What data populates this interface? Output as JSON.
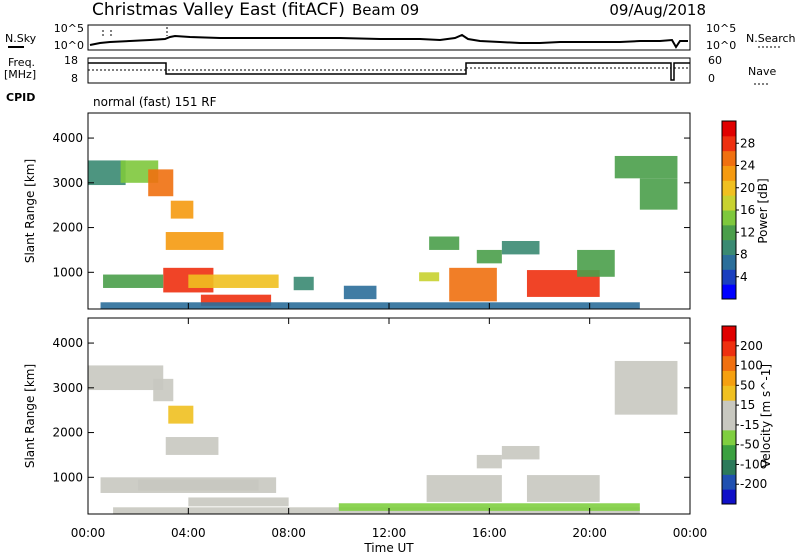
{
  "header": {
    "title": "Christmas Valley East (fitACF)",
    "beam": "Beam 09",
    "date": "09/Aug/2018"
  },
  "top_panels": {
    "nsky_label": "N.Sky",
    "nsearch_label": "N.Search",
    "noise_ticks_left": [
      "10^5",
      "10^0"
    ],
    "noise_ticks_right": [
      "10^5",
      "10^0"
    ],
    "freq_label": "Freq.",
    "freq_unit": "[MHz]",
    "freq_ticks": [
      "18",
      "8"
    ],
    "nave_label": "Nave",
    "nave_ticks": [
      "60",
      "0"
    ],
    "cpid_label": "CPID",
    "cpid_value": "normal (fast) 151 RF"
  },
  "chart_data": [
    {
      "type": "heatmap",
      "title": "",
      "xlabel": "Time UT",
      "ylabel": "Slant Range [km]",
      "x_ticks": [
        "00:00",
        "04:00",
        "08:00",
        "12:00",
        "16:00",
        "20:00",
        "00:00"
      ],
      "xlim_hours": [
        0,
        24
      ],
      "y_ticks": [
        1000,
        2000,
        3000,
        4000
      ],
      "ylim": [
        180,
        4560
      ],
      "colorbar": {
        "label": "Power [dB]",
        "ticks": [
          "4",
          "8",
          "12",
          "16",
          "20",
          "24",
          "28"
        ],
        "range": [
          0,
          30
        ],
        "colors": [
          "#0000ff",
          "#1a3fbf",
          "#2b6e9a",
          "#3a8a72",
          "#4a9e4a",
          "#7ec83c",
          "#c8d230",
          "#f0c020",
          "#f59a10",
          "#f07010",
          "#ee3010",
          "#e00000"
        ]
      },
      "patches": [
        {
          "t0": 0.0,
          "t1": 1.5,
          "r0": 2950,
          "r1": 3500,
          "v": 8
        },
        {
          "t0": 1.3,
          "t1": 2.8,
          "r0": 3000,
          "r1": 3500,
          "v": 14
        },
        {
          "t0": 2.4,
          "t1": 3.4,
          "r0": 2700,
          "r1": 3300,
          "v": 24
        },
        {
          "t0": 3.3,
          "t1": 4.2,
          "r0": 2200,
          "r1": 2600,
          "v": 20
        },
        {
          "t0": 3.1,
          "t1": 5.4,
          "r0": 1500,
          "r1": 1900,
          "v": 20
        },
        {
          "t0": 3.0,
          "t1": 5.0,
          "r0": 550,
          "r1": 1100,
          "v": 26
        },
        {
          "t0": 4.0,
          "t1": 7.6,
          "r0": 650,
          "r1": 950,
          "v": 18
        },
        {
          "t0": 0.6,
          "t1": 3.0,
          "r0": 650,
          "r1": 950,
          "v": 12
        },
        {
          "t0": 4.5,
          "t1": 7.3,
          "r0": 250,
          "r1": 500,
          "v": 26
        },
        {
          "t0": 0.5,
          "t1": 22.0,
          "r0": 180,
          "r1": 330,
          "v": 6
        },
        {
          "t0": 8.2,
          "t1": 9.0,
          "r0": 600,
          "r1": 900,
          "v": 8
        },
        {
          "t0": 10.2,
          "t1": 11.5,
          "r0": 400,
          "r1": 700,
          "v": 6
        },
        {
          "t0": 13.6,
          "t1": 14.8,
          "r0": 1500,
          "r1": 1800,
          "v": 10
        },
        {
          "t0": 13.2,
          "t1": 14.0,
          "r0": 800,
          "r1": 1000,
          "v": 16
        },
        {
          "t0": 14.4,
          "t1": 16.3,
          "r0": 350,
          "r1": 1100,
          "v": 24
        },
        {
          "t0": 15.5,
          "t1": 16.5,
          "r0": 1200,
          "r1": 1500,
          "v": 10
        },
        {
          "t0": 16.5,
          "t1": 18.0,
          "r0": 1400,
          "r1": 1700,
          "v": 8
        },
        {
          "t0": 17.5,
          "t1": 20.4,
          "r0": 450,
          "r1": 1050,
          "v": 26
        },
        {
          "t0": 19.5,
          "t1": 21.0,
          "r0": 900,
          "r1": 1500,
          "v": 10
        },
        {
          "t0": 21.0,
          "t1": 23.5,
          "r0": 3100,
          "r1": 3600,
          "v": 10
        },
        {
          "t0": 22.0,
          "t1": 23.5,
          "r0": 2400,
          "r1": 3100,
          "v": 12
        }
      ]
    },
    {
      "type": "heatmap",
      "title": "",
      "xlabel": "Time UT",
      "ylabel": "Slant Range [km]",
      "x_ticks": [
        "00:00",
        "04:00",
        "08:00",
        "12:00",
        "16:00",
        "20:00",
        "00:00"
      ],
      "xlim_hours": [
        0,
        24
      ],
      "y_ticks": [
        1000,
        2000,
        3000,
        4000
      ],
      "ylim": [
        180,
        4560
      ],
      "colorbar": {
        "label": "Velocity [m s^-1]",
        "ticks": [
          "200",
          "100",
          "50",
          "15",
          "-15",
          "-50",
          "-100",
          "-200"
        ],
        "range": [
          -250,
          250
        ],
        "colors": [
          "#1010c8",
          "#2050b0",
          "#2c7a5a",
          "#3aa040",
          "#7fcf40",
          "#c8c8c0",
          "#c8c8c0",
          "#f0c020",
          "#f5a010",
          "#f07010",
          "#ee3010",
          "#e00000"
        ]
      },
      "patches": [
        {
          "t0": 0.0,
          "t1": 3.0,
          "r0": 2950,
          "r1": 3500,
          "v": 0
        },
        {
          "t0": 2.6,
          "t1": 3.4,
          "r0": 2700,
          "r1": 3200,
          "v": 0
        },
        {
          "t0": 3.2,
          "t1": 4.2,
          "r0": 2200,
          "r1": 2600,
          "v": 80
        },
        {
          "t0": 3.1,
          "t1": 5.2,
          "r0": 1500,
          "r1": 1900,
          "v": 0
        },
        {
          "t0": 0.5,
          "t1": 7.5,
          "r0": 650,
          "r1": 1000,
          "v": 0
        },
        {
          "t0": 2.0,
          "t1": 6.8,
          "r0": 700,
          "r1": 950,
          "v": -40
        },
        {
          "t0": 4.0,
          "t1": 8.0,
          "r0": 350,
          "r1": 550,
          "v": -35
        },
        {
          "t0": 1.0,
          "t1": 22.0,
          "r0": 180,
          "r1": 330,
          "v": 30
        },
        {
          "t0": 10.0,
          "t1": 22.0,
          "r0": 250,
          "r1": 420,
          "v": -45
        },
        {
          "t0": 13.5,
          "t1": 16.5,
          "r0": 450,
          "r1": 1050,
          "v": 0
        },
        {
          "t0": 17.5,
          "t1": 20.4,
          "r0": 450,
          "r1": 1050,
          "v": 0
        },
        {
          "t0": 15.5,
          "t1": 16.5,
          "r0": 1200,
          "r1": 1500,
          "v": 0
        },
        {
          "t0": 16.5,
          "t1": 18.0,
          "r0": 1400,
          "r1": 1700,
          "v": 0
        },
        {
          "t0": 21.0,
          "t1": 23.5,
          "r0": 2400,
          "r1": 3600,
          "v": 0
        }
      ]
    }
  ]
}
